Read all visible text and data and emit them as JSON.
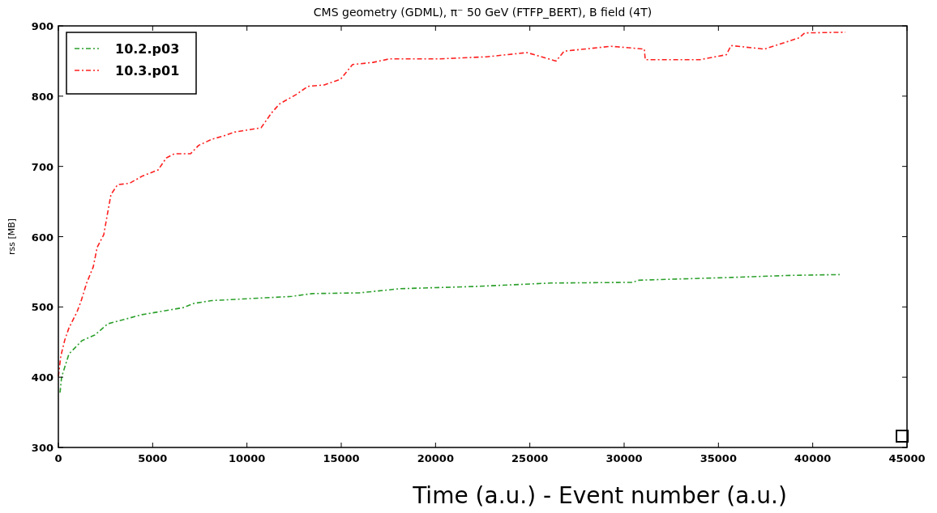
{
  "chart_data": {
    "type": "line",
    "title": "CMS geometry (GDML), π⁻ 50 GeV (FTFP_BERT), B field (4T)",
    "xlabel": "Time (a.u.) - Event number (a.u.)",
    "ylabel": "rss [MB]",
    "xlim": [
      0,
      45000
    ],
    "xticks": [
      0,
      5000,
      10000,
      15000,
      20000,
      25000,
      30000,
      35000,
      40000,
      45000
    ],
    "ylim": [
      300,
      900
    ],
    "yticks": [
      300,
      400,
      500,
      600,
      700,
      800,
      900
    ],
    "grid": false,
    "legend": "top left",
    "line_style": "dashed",
    "marker": "none",
    "series": [
      {
        "name": "10.2.p03",
        "color": "#2ca02c",
        "x": [
          90,
          170,
          560,
          1250,
          1930,
          2620,
          4430,
          6620,
          7180,
          8120,
          12380,
          13450,
          15950,
          18140,
          21960,
          26090,
          30470,
          30730,
          35670,
          38940,
          41430
        ],
        "values": [
          378,
          400,
          433,
          452,
          460,
          476,
          489,
          499,
          505,
          509,
          515,
          519,
          520,
          526,
          529,
          534,
          535,
          538,
          542,
          545,
          546
        ]
      },
      {
        "name": "10.3.p01",
        "color": "#ff2020",
        "x": [
          0,
          130,
          340,
          560,
          990,
          1200,
          1500,
          1850,
          2060,
          2410,
          2620,
          2790,
          3140,
          3780,
          4430,
          5290,
          5720,
          6150,
          7010,
          7440,
          8170,
          8730,
          9370,
          10750,
          11300,
          11730,
          12590,
          13240,
          14100,
          14960,
          15600,
          16680,
          17540,
          20110,
          20970,
          22700,
          24850,
          26390,
          26820,
          29310,
          31070,
          31120,
          34040,
          35420,
          35670,
          37440,
          39280,
          39580,
          41730
        ],
        "values": [
          401,
          430,
          453,
          470,
          493,
          508,
          534,
          557,
          585,
          603,
          635,
          660,
          674,
          676,
          686,
          695,
          712,
          718,
          718,
          730,
          739,
          743,
          749,
          755,
          776,
          789,
          802,
          814,
          816,
          824,
          845,
          848,
          853,
          853,
          854,
          856,
          862,
          850,
          864,
          871,
          867,
          852,
          852,
          859,
          872,
          867,
          883,
          890,
          891
        ]
      }
    ]
  }
}
